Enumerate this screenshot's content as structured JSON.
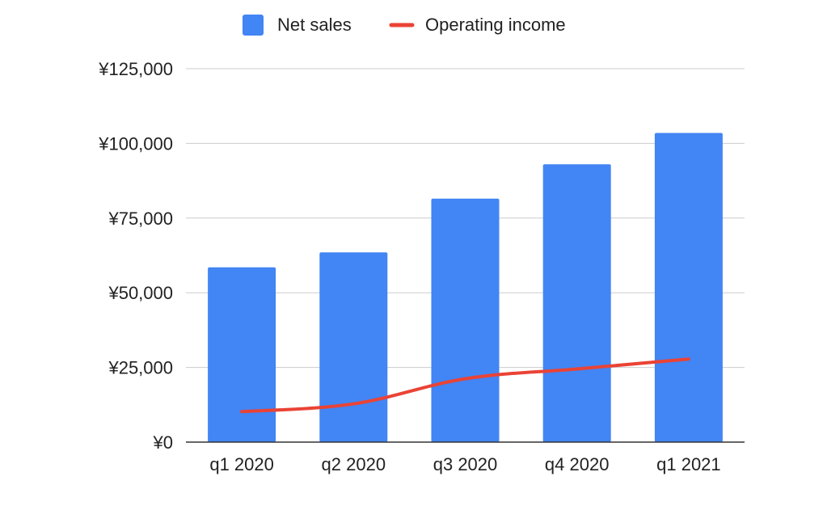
{
  "chart_data": {
    "type": "bar",
    "categories": [
      "q1 2020",
      "q2 2020",
      "q3 2020",
      "q4 2020",
      "q1 2021"
    ],
    "series": [
      {
        "name": "Net sales",
        "type": "bar",
        "color": "#4285f4",
        "values": [
          58500,
          63500,
          81500,
          93000,
          103500
        ]
      },
      {
        "name": "Operating income",
        "type": "line",
        "color": "#ea4335",
        "values": [
          10200,
          12800,
          21200,
          24500,
          27800
        ]
      }
    ],
    "title": "",
    "xlabel": "",
    "ylabel": "",
    "ylim": [
      0,
      125000
    ],
    "yticks": [
      0,
      25000,
      50000,
      75000,
      100000,
      125000
    ],
    "ytick_labels": [
      "¥0",
      "¥25,000",
      "¥50,000",
      "¥75,000",
      "¥100,000",
      "¥125,000"
    ],
    "grid": true,
    "legend_position": "top"
  }
}
